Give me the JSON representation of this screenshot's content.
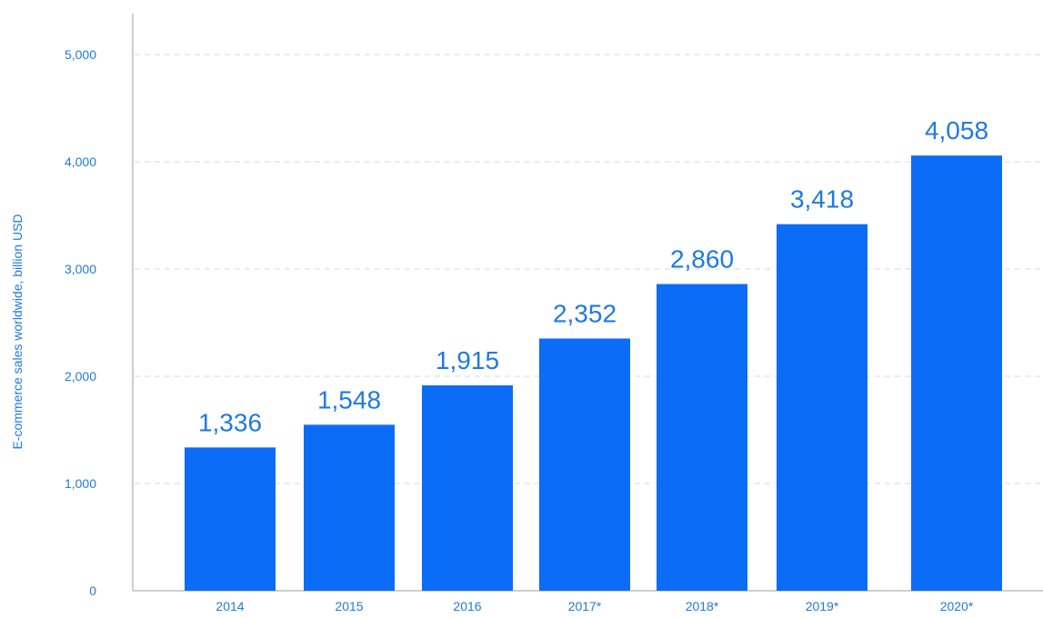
{
  "chart_data": {
    "type": "bar",
    "categories": [
      "2014",
      "2015",
      "2016",
      "2017*",
      "2018*",
      "2019*",
      "2020*"
    ],
    "values": [
      1336,
      1548,
      1915,
      2352,
      2860,
      3418,
      4058
    ],
    "value_labels": [
      "1,336",
      "1,548",
      "1,915",
      "2,352",
      "2,860",
      "3,418",
      "4,058"
    ],
    "title": "",
    "xlabel": "",
    "ylabel": "E-commerce sales worldwide, billion USD",
    "ylim": [
      0,
      5000
    ],
    "yticks": [
      0,
      1000,
      2000,
      3000,
      4000,
      5000
    ],
    "ytick_labels": [
      "0",
      "1,000",
      "2,000",
      "3,000",
      "4,000",
      "5,000"
    ],
    "grid": true,
    "legend": "none"
  },
  "colors": {
    "bar": "#0b6cf8",
    "text": "#1f7ae0",
    "grid": "#d9d9d9",
    "axis": "#bdbdbd"
  }
}
